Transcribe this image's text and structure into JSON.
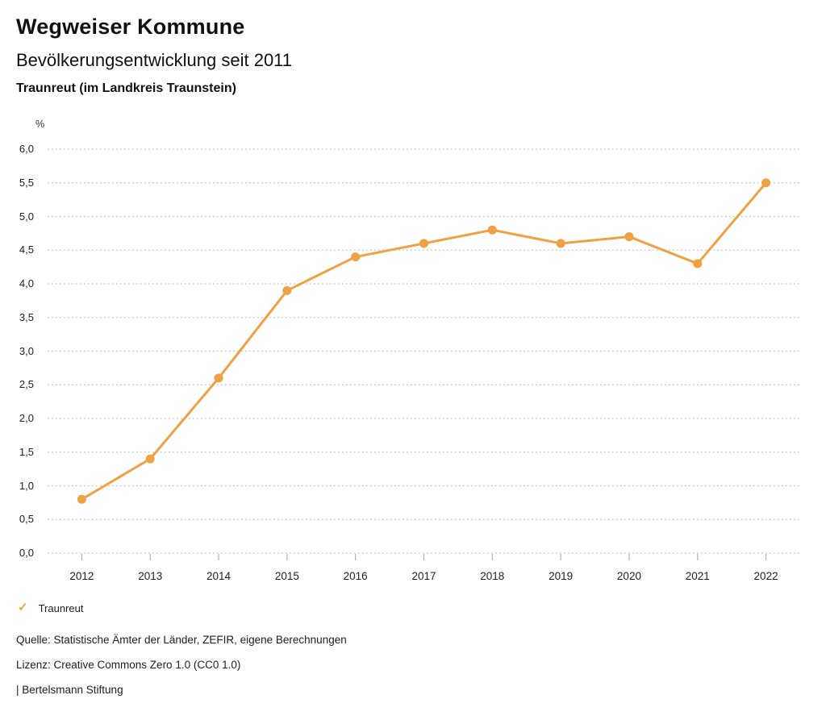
{
  "header": {
    "title": "Wegweiser Kommune",
    "subtitle": "Bevölkerungsentwicklung seit 2011",
    "location": "Traunreut (im Landkreis Traunstein)"
  },
  "chart_data": {
    "type": "line",
    "title": "Bevölkerungsentwicklung seit 2011",
    "unit": "%",
    "x": [
      "2012",
      "2013",
      "2014",
      "2015",
      "2016",
      "2017",
      "2018",
      "2019",
      "2020",
      "2021",
      "2022"
    ],
    "series": [
      {
        "name": "Traunreut",
        "color": "#EFA143",
        "values": [
          0.8,
          1.4,
          2.6,
          3.9,
          4.4,
          4.6,
          4.8,
          4.6,
          4.7,
          4.3,
          5.5
        ]
      }
    ],
    "ylim": [
      0,
      6
    ],
    "ytick_step": 0.5,
    "yticklabels": [
      "0,0",
      "0,5",
      "1,0",
      "1,5",
      "2,0",
      "2,5",
      "3,0",
      "3,5",
      "4,0",
      "4,5",
      "5,0",
      "5,5",
      "6,0"
    ],
    "grid": "horizontal-dotted",
    "gridline_color": "#bfbfbf",
    "tick_color": "#a9a9a9",
    "legend_position": "bottom-left"
  },
  "legend": {
    "items": [
      {
        "label": "Traunreut",
        "color": "#EFA143",
        "icon": "check"
      }
    ]
  },
  "footer": {
    "source": "Quelle: Statistische Ämter der Länder, ZEFIR, eigene Berechnungen",
    "license": "Lizenz: Creative Commons Zero 1.0 (CC0 1.0)",
    "brand": "| Bertelsmann Stiftung"
  }
}
